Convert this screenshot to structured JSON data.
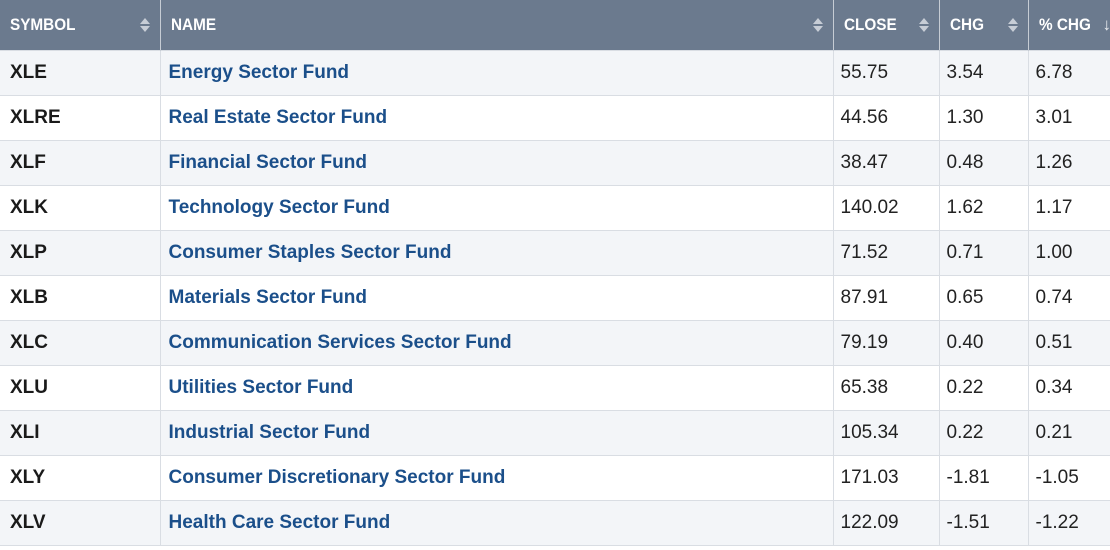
{
  "table": {
    "headers": {
      "symbol": "SYMBOL",
      "name": "NAME",
      "close": "CLOSE",
      "chg": "CHG",
      "pct_chg": "% CHG"
    },
    "rows": [
      {
        "symbol": "XLE",
        "name": "Energy Sector Fund",
        "close": "55.75",
        "chg": "3.54",
        "pct_chg": "6.78"
      },
      {
        "symbol": "XLRE",
        "name": "Real Estate Sector Fund",
        "close": "44.56",
        "chg": "1.30",
        "pct_chg": "3.01"
      },
      {
        "symbol": "XLF",
        "name": "Financial Sector Fund",
        "close": "38.47",
        "chg": "0.48",
        "pct_chg": "1.26"
      },
      {
        "symbol": "XLK",
        "name": "Technology Sector Fund",
        "close": "140.02",
        "chg": "1.62",
        "pct_chg": "1.17"
      },
      {
        "symbol": "XLP",
        "name": "Consumer Staples Sector Fund",
        "close": "71.52",
        "chg": "0.71",
        "pct_chg": "1.00"
      },
      {
        "symbol": "XLB",
        "name": "Materials Sector Fund",
        "close": "87.91",
        "chg": "0.65",
        "pct_chg": "0.74"
      },
      {
        "symbol": "XLC",
        "name": "Communication Services Sector Fund",
        "close": "79.19",
        "chg": "0.40",
        "pct_chg": "0.51"
      },
      {
        "symbol": "XLU",
        "name": "Utilities Sector Fund",
        "close": "65.38",
        "chg": "0.22",
        "pct_chg": "0.34"
      },
      {
        "symbol": "XLI",
        "name": "Industrial Sector Fund",
        "close": "105.34",
        "chg": "0.22",
        "pct_chg": "0.21"
      },
      {
        "symbol": "XLY",
        "name": "Consumer Discretionary Sector Fund",
        "close": "171.03",
        "chg": "-1.81",
        "pct_chg": "-1.05"
      },
      {
        "symbol": "XLV",
        "name": "Health Care Sector Fund",
        "close": "122.09",
        "chg": "-1.51",
        "pct_chg": "-1.22"
      }
    ]
  },
  "icons": {
    "sort_unsorted": "sort-arrows-icon",
    "sort_active": "sort-descending-icon"
  },
  "colors": {
    "header_bg": "#6b7a8e",
    "link": "#1b4f8a"
  }
}
